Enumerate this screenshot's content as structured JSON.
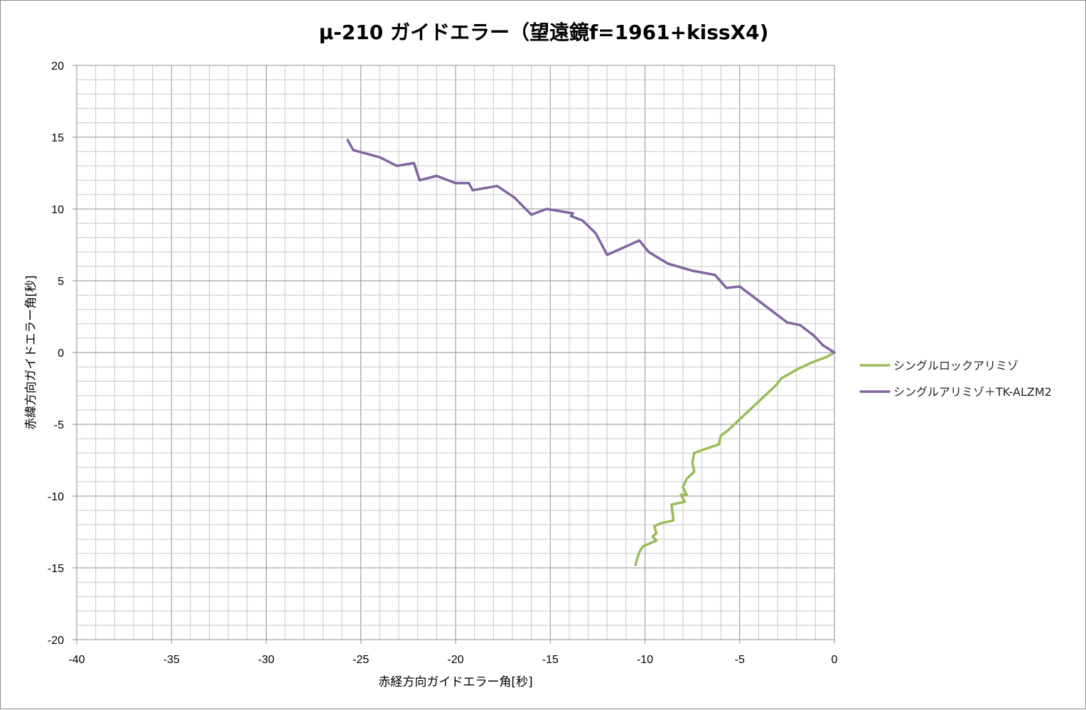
{
  "chart_data": {
    "type": "scatter",
    "title": "μ-210 ガイドエラー（望遠鏡f=1961+kissX4)",
    "xlabel": "赤経方向ガイドエラー角[秒]",
    "ylabel": "赤緯方向ガイドエラー角[秒]",
    "xlim": [
      -40,
      0
    ],
    "ylim": [
      -20,
      20
    ],
    "x_major": 5,
    "y_major": 5,
    "x_minor": 1,
    "y_minor": 1,
    "grid": true,
    "legend_position": "right",
    "x_ticks": [
      "-40",
      "-35",
      "-30",
      "-25",
      "-20",
      "-15",
      "-10",
      "-5",
      "0"
    ],
    "y_ticks": [
      "20",
      "15",
      "10",
      "5",
      "0",
      "-5",
      "-10",
      "-15",
      "-20"
    ],
    "series": [
      {
        "name": "シングルロックアリミゾ",
        "color": "#9bbb59",
        "points": [
          [
            0,
            0
          ],
          [
            -0.4,
            -0.3
          ],
          [
            -1.2,
            -0.7
          ],
          [
            -2.0,
            -1.2
          ],
          [
            -2.8,
            -1.8
          ],
          [
            -3.1,
            -2.3
          ],
          [
            -5.2,
            -4.9
          ],
          [
            -5.6,
            -5.4
          ],
          [
            -6.0,
            -5.8
          ],
          [
            -6.1,
            -6.4
          ],
          [
            -7.0,
            -6.8
          ],
          [
            -7.4,
            -7.0
          ],
          [
            -7.5,
            -7.7
          ],
          [
            -7.4,
            -8.3
          ],
          [
            -7.8,
            -8.8
          ],
          [
            -8.0,
            -9.4
          ],
          [
            -7.8,
            -9.9
          ],
          [
            -8.1,
            -9.9
          ],
          [
            -7.9,
            -10.4
          ],
          [
            -8.6,
            -10.6
          ],
          [
            -8.5,
            -11.7
          ],
          [
            -9.2,
            -11.9
          ],
          [
            -9.5,
            -12.1
          ],
          [
            -9.4,
            -12.6
          ],
          [
            -9.6,
            -12.8
          ],
          [
            -9.4,
            -13.1
          ],
          [
            -10.1,
            -13.5
          ],
          [
            -10.3,
            -13.9
          ],
          [
            -10.4,
            -14.3
          ],
          [
            -10.5,
            -14.8
          ]
        ]
      },
      {
        "name": "シングルアリミゾ＋TK-ALZM2",
        "color": "#8064a2",
        "points": [
          [
            0,
            0
          ],
          [
            -0.6,
            0.5
          ],
          [
            -1.1,
            1.2
          ],
          [
            -1.8,
            1.9
          ],
          [
            -2.5,
            2.1
          ],
          [
            -3.2,
            2.8
          ],
          [
            -4.2,
            3.8
          ],
          [
            -5.0,
            4.6
          ],
          [
            -5.7,
            4.5
          ],
          [
            -6.3,
            5.4
          ],
          [
            -7.5,
            5.7
          ],
          [
            -8.8,
            6.2
          ],
          [
            -9.8,
            7.0
          ],
          [
            -10.3,
            7.8
          ],
          [
            -12.0,
            6.8
          ],
          [
            -12.6,
            8.3
          ],
          [
            -13.3,
            9.2
          ],
          [
            -13.9,
            9.5
          ],
          [
            -13.8,
            9.7
          ],
          [
            -15.2,
            10.0
          ],
          [
            -16.0,
            9.6
          ],
          [
            -16.9,
            10.8
          ],
          [
            -17.8,
            11.6
          ],
          [
            -19.1,
            11.3
          ],
          [
            -19.3,
            11.8
          ],
          [
            -20.0,
            11.8
          ],
          [
            -21.0,
            12.3
          ],
          [
            -21.9,
            12.0
          ],
          [
            -22.2,
            13.2
          ],
          [
            -23.1,
            13.0
          ],
          [
            -24.0,
            13.6
          ],
          [
            -25.4,
            14.1
          ],
          [
            -25.7,
            14.8
          ]
        ]
      }
    ]
  }
}
